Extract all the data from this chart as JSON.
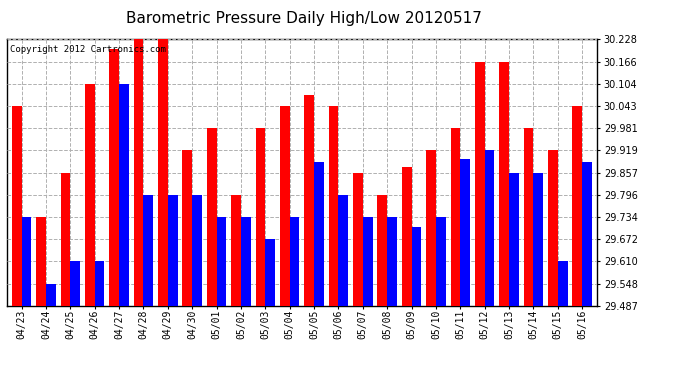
{
  "title": "Barometric Pressure Daily High/Low 20120517",
  "copyright": "Copyright 2012 Cartronics.com",
  "dates": [
    "04/23",
    "04/24",
    "04/25",
    "04/26",
    "04/27",
    "04/28",
    "04/29",
    "04/30",
    "05/01",
    "05/02",
    "05/03",
    "05/04",
    "05/05",
    "05/06",
    "05/07",
    "05/08",
    "05/09",
    "05/10",
    "05/11",
    "05/12",
    "05/13",
    "05/14",
    "05/15",
    "05/16"
  ],
  "highs": [
    30.043,
    29.734,
    29.857,
    30.104,
    30.2,
    30.228,
    30.228,
    29.919,
    29.981,
    29.796,
    29.981,
    30.043,
    30.072,
    30.043,
    29.857,
    29.796,
    29.872,
    29.919,
    29.981,
    30.166,
    30.166,
    29.981,
    29.919,
    30.043
  ],
  "lows": [
    29.734,
    29.548,
    29.61,
    29.61,
    30.104,
    29.796,
    29.796,
    29.796,
    29.734,
    29.734,
    29.672,
    29.734,
    29.886,
    29.796,
    29.734,
    29.734,
    29.706,
    29.734,
    29.895,
    29.919,
    29.857,
    29.857,
    29.61,
    29.886
  ],
  "ymin": 29.487,
  "ymax": 30.228,
  "yticks": [
    29.487,
    29.548,
    29.61,
    29.672,
    29.734,
    29.796,
    29.857,
    29.919,
    29.981,
    30.043,
    30.104,
    30.166,
    30.228
  ],
  "high_color": "#ff0000",
  "low_color": "#0000ff",
  "bg_color": "#ffffff",
  "grid_color": "#b0b0b0",
  "title_fontsize": 11,
  "bar_width": 0.4
}
